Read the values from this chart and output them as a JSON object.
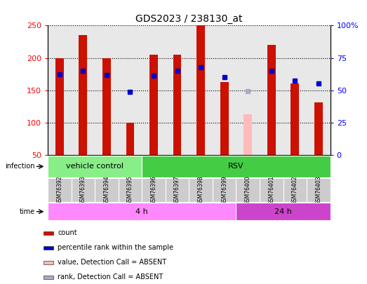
{
  "title": "GDS2023 / 238130_at",
  "samples": [
    "GSM76392",
    "GSM76393",
    "GSM76394",
    "GSM76395",
    "GSM76396",
    "GSM76397",
    "GSM76398",
    "GSM76399",
    "GSM76400",
    "GSM76401",
    "GSM76402",
    "GSM76403"
  ],
  "count_values": [
    199,
    235,
    200,
    100,
    205,
    205,
    250,
    163,
    null,
    220,
    160,
    131
  ],
  "count_absent": [
    null,
    null,
    null,
    null,
    null,
    null,
    null,
    null,
    113,
    null,
    null,
    null
  ],
  "rank_values": [
    175,
    180,
    173,
    147,
    172,
    180,
    185,
    170,
    null,
    180,
    165,
    160
  ],
  "rank_absent": [
    null,
    null,
    null,
    null,
    null,
    null,
    null,
    null,
    148,
    null,
    null,
    null
  ],
  "ylim_left": [
    50,
    250
  ],
  "ylim_right": [
    0,
    100
  ],
  "yticks_left": [
    50,
    100,
    150,
    200,
    250
  ],
  "yticks_right": [
    0,
    25,
    50,
    75,
    100
  ],
  "ytick_labels_right": [
    "0",
    "25",
    "50",
    "75",
    "100%"
  ],
  "infection_groups": [
    {
      "label": "vehicle control",
      "start": 0,
      "end": 4,
      "color": "#88ee88"
    },
    {
      "label": "RSV",
      "start": 4,
      "end": 12,
      "color": "#44cc44"
    }
  ],
  "time_groups": [
    {
      "label": "4 h",
      "start": 0,
      "end": 8,
      "color": "#ff88ff"
    },
    {
      "label": "24 h",
      "start": 8,
      "end": 12,
      "color": "#cc44cc"
    }
  ],
  "color_count": "#cc1100",
  "color_count_absent": "#ffbbbb",
  "color_rank": "#0000cc",
  "color_rank_absent": "#aaaacc",
  "bar_width": 0.35,
  "rank_marker_size": 5,
  "background_plot": "#e8e8e8",
  "background_label": "#cccccc",
  "infection_label": "infection",
  "time_label": "time",
  "legend_items": [
    {
      "color": "#cc1100",
      "label": "count"
    },
    {
      "color": "#0000cc",
      "label": "percentile rank within the sample"
    },
    {
      "color": "#ffbbbb",
      "label": "value, Detection Call = ABSENT"
    },
    {
      "color": "#aaaacc",
      "label": "rank, Detection Call = ABSENT"
    }
  ]
}
